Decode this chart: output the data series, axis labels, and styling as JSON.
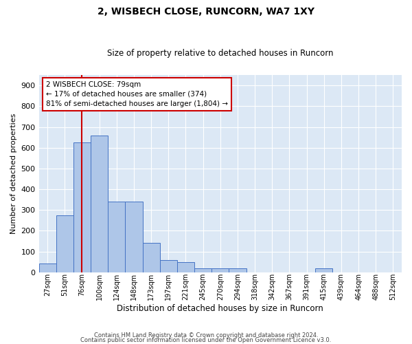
{
  "title": "2, WISBECH CLOSE, RUNCORN, WA7 1XY",
  "subtitle": "Size of property relative to detached houses in Runcorn",
  "xlabel": "Distribution of detached houses by size in Runcorn",
  "ylabel": "Number of detached properties",
  "bin_labels": [
    "27sqm",
    "51sqm",
    "76sqm",
    "100sqm",
    "124sqm",
    "148sqm",
    "173sqm",
    "197sqm",
    "221sqm",
    "245sqm",
    "270sqm",
    "294sqm",
    "318sqm",
    "342sqm",
    "367sqm",
    "391sqm",
    "415sqm",
    "439sqm",
    "464sqm",
    "488sqm",
    "512sqm"
  ],
  "bar_heights": [
    42,
    275,
    625,
    660,
    340,
    340,
    140,
    60,
    50,
    20,
    20,
    18,
    0,
    0,
    0,
    0,
    18,
    0,
    0,
    0,
    0
  ],
  "bar_color": "#aec6e8",
  "bar_edge_color": "#4472c4",
  "vline_x_index": 2,
  "vline_color": "#cc0000",
  "annotation_text_line1": "2 WISBECH CLOSE: 79sqm",
  "annotation_text_line2": "← 17% of detached houses are smaller (374)",
  "annotation_text_line3": "81% of semi-detached houses are larger (1,804) →",
  "annotation_box_color": "#ffffff",
  "annotation_box_edge": "#cc0000",
  "ylim": [
    0,
    950
  ],
  "yticks": [
    0,
    100,
    200,
    300,
    400,
    500,
    600,
    700,
    800,
    900
  ],
  "footer_line1": "Contains HM Land Registry data © Crown copyright and database right 2024.",
  "footer_line2": "Contains public sector information licensed under the Open Government Licence v3.0.",
  "plot_bg_color": "#dce8f5",
  "title_fontsize": 10,
  "subtitle_fontsize": 8.5
}
